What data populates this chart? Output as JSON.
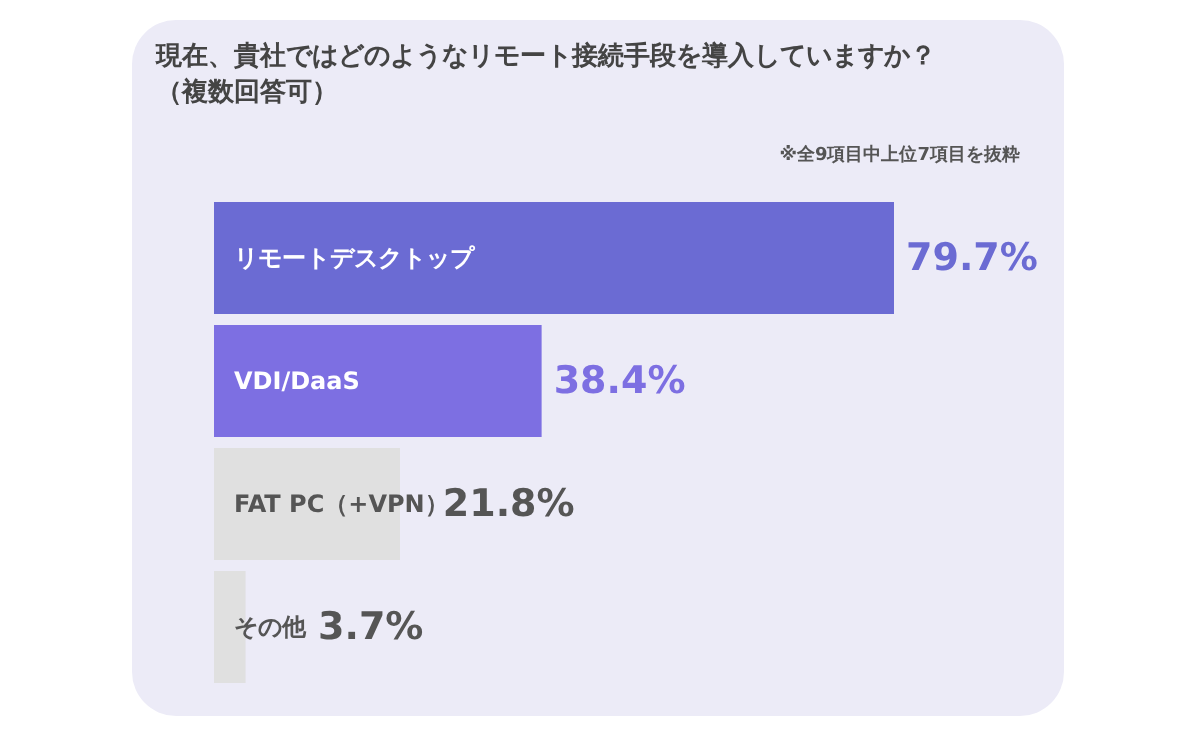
{
  "chart_data": {
    "type": "bar",
    "orientation": "horizontal",
    "title": "現在、貴社ではどのようなリモート接続手段を導入していますか？（複数回答可）",
    "annotations": [
      "※全9項目中上位7項目を抜粋"
    ],
    "categories": [
      "リモートデスクトップ",
      "VDI/DaaS",
      "FAT PC（+VPN）",
      "その他"
    ],
    "values": [
      79.7,
      38.4,
      21.8,
      3.7
    ],
    "value_labels": [
      "79.7%",
      "38.4%",
      "21.8%",
      "3.7%"
    ],
    "colors": [
      "#6b6bd3",
      "#7d6fe2",
      "#e0e0e0",
      "#e0e0e0"
    ]
  }
}
